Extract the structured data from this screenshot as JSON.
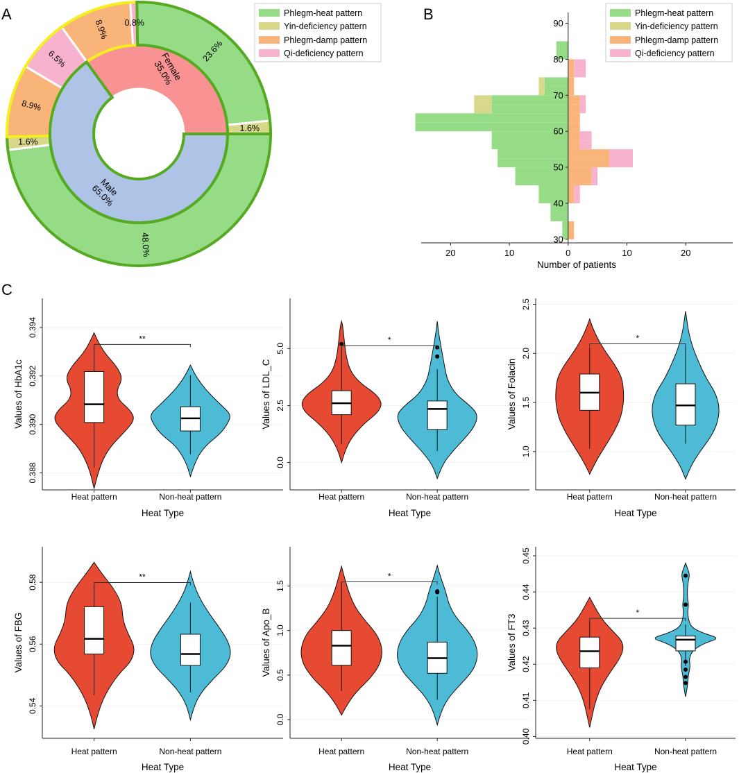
{
  "panel_labels": {
    "a": "A",
    "b": "B",
    "c": "C"
  },
  "colors": {
    "phlegm_heat": "#96dc87",
    "yin_def": "#d8d88a",
    "phlegm_damp": "#f9b47a",
    "qi_def": "#f7b2d0",
    "male": "#aec4e6",
    "female": "#f99292",
    "heat_border": "#55aa22",
    "nonheat_border": "#f5ef1e",
    "violin_heat": "#e64a33",
    "violin_nonheat": "#4dbbd5"
  },
  "chart_data": [
    {
      "id": "A",
      "type": "pie",
      "subtype": "donut",
      "legend": [
        "Phlegm-heat pattern",
        "Yin-deficiency pattern",
        "Phlegm-damp pattern",
        "Qi-deficiency pattern"
      ],
      "inner": [
        {
          "label": "Male",
          "pct": "65.0%",
          "value": 65.0
        },
        {
          "label": "Female",
          "pct": "35.0%",
          "value": 35.0
        }
      ],
      "outer": [
        {
          "category": "Phlegm-heat pattern",
          "label": "48.0%",
          "value": 48.0
        },
        {
          "category": "Yin-deficiency pattern",
          "label": "1.6%",
          "value": 1.6
        },
        {
          "category": "Phlegm-damp pattern",
          "label": "8.9%",
          "value": 8.9
        },
        {
          "category": "Qi-deficiency pattern",
          "label": "6.5%",
          "value": 6.5
        },
        {
          "category": "Phlegm-damp pattern",
          "label": "8.9%",
          "value": 8.9
        },
        {
          "category": "Qi-deficiency pattern",
          "label": "0.8%",
          "value": 0.8
        },
        {
          "category": "Phlegm-heat pattern",
          "label": "23.6%",
          "value": 23.6
        },
        {
          "category": "Yin-deficiency pattern",
          "label": "1.6%",
          "value": 1.6
        }
      ]
    },
    {
      "id": "B",
      "type": "bar",
      "subtype": "population-pyramid (stacked)",
      "xlabel": "Number of patients",
      "x_ticks": [
        "20",
        "10",
        "0",
        "10",
        "20"
      ],
      "xlim": [
        -25,
        28
      ],
      "ylim": [
        29,
        93
      ],
      "y_ticks": [
        "30",
        "40",
        "50",
        "60",
        "70",
        "80",
        "90"
      ],
      "bin_width": 2.5,
      "legend": [
        "Phlegm-heat pattern",
        "Yin-deficiency pattern",
        "Phlegm-damp pattern",
        "Qi-deficiency pattern"
      ],
      "left_bins": [
        {
          "age": 30,
          "heat": 1,
          "yin": 0
        },
        {
          "age": 32.5,
          "heat": 1,
          "yin": 0
        },
        {
          "age": 35,
          "heat": 3,
          "yin": 0
        },
        {
          "age": 37.5,
          "heat": 3,
          "yin": 0
        },
        {
          "age": 40,
          "heat": 5,
          "yin": 0
        },
        {
          "age": 42.5,
          "heat": 5,
          "yin": 0
        },
        {
          "age": 45,
          "heat": 9,
          "yin": 0
        },
        {
          "age": 47.5,
          "heat": 9,
          "yin": 0
        },
        {
          "age": 50,
          "heat": 12,
          "yin": 0
        },
        {
          "age": 52.5,
          "heat": 12,
          "yin": 0
        },
        {
          "age": 55,
          "heat": 13,
          "yin": 0
        },
        {
          "age": 57.5,
          "heat": 13,
          "yin": 0
        },
        {
          "age": 60,
          "heat": 26,
          "yin": 0
        },
        {
          "age": 62.5,
          "heat": 26,
          "yin": 0
        },
        {
          "age": 65,
          "heat": 13,
          "yin": 3
        },
        {
          "age": 67.5,
          "heat": 13,
          "yin": 3
        },
        {
          "age": 70,
          "heat": 4,
          "yin": 1
        },
        {
          "age": 72.5,
          "heat": 4,
          "yin": 1
        },
        {
          "age": 80,
          "heat": 2,
          "yin": 0
        },
        {
          "age": 82.5,
          "heat": 2,
          "yin": 0
        }
      ],
      "right_bins": [
        {
          "age": 30,
          "damp": 1,
          "qi": 0
        },
        {
          "age": 32.5,
          "damp": 1,
          "qi": 0
        },
        {
          "age": 40,
          "damp": 1,
          "qi": 1
        },
        {
          "age": 42.5,
          "damp": 1,
          "qi": 1
        },
        {
          "age": 45,
          "damp": 4,
          "qi": 1
        },
        {
          "age": 47.5,
          "damp": 4,
          "qi": 1
        },
        {
          "age": 50,
          "damp": 7,
          "qi": 4
        },
        {
          "age": 52.5,
          "damp": 7,
          "qi": 4
        },
        {
          "age": 55,
          "damp": 2,
          "qi": 2
        },
        {
          "age": 57.5,
          "damp": 2,
          "qi": 2
        },
        {
          "age": 60,
          "damp": 2,
          "qi": 0
        },
        {
          "age": 62.5,
          "damp": 2,
          "qi": 0
        },
        {
          "age": 65,
          "damp": 2,
          "qi": 1
        },
        {
          "age": 67.5,
          "damp": 2,
          "qi": 1
        },
        {
          "age": 70,
          "damp": 1,
          "qi": 0
        },
        {
          "age": 72.5,
          "damp": 1,
          "qi": 0
        },
        {
          "age": 75,
          "damp": 1,
          "qi": 2
        },
        {
          "age": 77.5,
          "damp": 1,
          "qi": 2
        }
      ]
    },
    {
      "id": "C1",
      "type": "violin",
      "ylabel": "Values of HbA1c",
      "xlabel": "Heat Type",
      "categories": [
        "Heat pattern",
        "Non-heat pattern"
      ],
      "ylim": [
        0.3873,
        0.3952
      ],
      "y_ticks": [
        0.388,
        0.39,
        0.392,
        0.394
      ],
      "y_tick_labels": [
        "0.388",
        "0.390",
        "0.392",
        "0.394"
      ],
      "significance": "**",
      "groups": [
        {
          "q1": 0.39008,
          "median": 0.39083,
          "q3": 0.39218,
          "whisker_low": 0.38822,
          "whisker_high": 0.39327,
          "density_y": [
            0.38735,
            0.3882,
            0.389,
            0.3897,
            0.3902,
            0.3906,
            0.391,
            0.3914,
            0.3919,
            0.3924,
            0.3929,
            0.3934,
            0.39378
          ],
          "density_w": [
            0.0,
            0.12,
            0.35,
            0.75,
            1.0,
            0.88,
            0.6,
            0.55,
            0.7,
            0.55,
            0.28,
            0.1,
            0.0
          ],
          "outliers": []
        },
        {
          "q1": 0.38973,
          "median": 0.39025,
          "q3": 0.39073,
          "whisker_low": 0.38878,
          "whisker_high": 0.39203,
          "density_y": [
            0.38785,
            0.3885,
            0.3891,
            0.3896,
            0.39,
            0.3904,
            0.3908,
            0.3913,
            0.3917,
            0.3921,
            0.39245
          ],
          "density_w": [
            0.0,
            0.12,
            0.35,
            0.72,
            0.9,
            1.0,
            0.75,
            0.45,
            0.25,
            0.1,
            0.0
          ],
          "outliers": []
        }
      ]
    },
    {
      "id": "C2",
      "type": "violin",
      "ylabel": "Values of LDL_C",
      "xlabel": "Heat Type",
      "categories": [
        "Heat pattern",
        "Non-heat pattern"
      ],
      "ylim": [
        -1.2,
        7.2
      ],
      "y_ticks": [
        0,
        2.5,
        5
      ],
      "y_tick_labels": [
        "0.0",
        "2.5",
        "5.0"
      ],
      "significance": "*",
      "groups": [
        {
          "q1": 2.1,
          "median": 2.6,
          "q3": 3.15,
          "whisker_low": 0.8,
          "whisker_high": 5.1,
          "density_y": [
            0.0,
            0.5,
            1.1,
            1.7,
            2.2,
            2.6,
            3.0,
            3.5,
            4.0,
            4.6,
            5.3,
            6.0,
            6.2
          ],
          "density_w": [
            0.0,
            0.08,
            0.25,
            0.55,
            0.9,
            1.0,
            0.85,
            0.45,
            0.22,
            0.12,
            0.07,
            0.03,
            0.0
          ],
          "outliers": [
            5.2
          ]
        },
        {
          "q1": 1.45,
          "median": 2.35,
          "q3": 2.7,
          "whisker_low": 0.5,
          "whisker_high": 4.1,
          "density_y": [
            -0.7,
            -0.1,
            0.5,
            1.1,
            1.6,
            2.1,
            2.5,
            3.0,
            3.6,
            4.2,
            4.8,
            5.6,
            6.2
          ],
          "density_w": [
            0.0,
            0.12,
            0.38,
            0.7,
            0.92,
            1.0,
            0.8,
            0.45,
            0.25,
            0.18,
            0.12,
            0.04,
            0.0
          ],
          "outliers": [
            4.65,
            5.05
          ]
        }
      ]
    },
    {
      "id": "C3",
      "type": "violin",
      "ylabel": "Values of Folacin",
      "xlabel": "Heat Type",
      "categories": [
        "Heat pattern",
        "Non-heat pattern"
      ],
      "ylim": [
        0.61,
        2.56
      ],
      "y_ticks": [
        1.0,
        1.5,
        2.0,
        2.5
      ],
      "y_tick_labels": [
        "1.0",
        "1.5",
        "2.0",
        "2.5"
      ],
      "significance": "*",
      "groups": [
        {
          "q1": 1.42,
          "median": 1.6,
          "q3": 1.79,
          "whisker_low": 1.03,
          "whisker_high": 2.06,
          "density_y": [
            0.77,
            0.9,
            1.05,
            1.2,
            1.35,
            1.5,
            1.62,
            1.75,
            1.88,
            2.0,
            2.12,
            2.25,
            2.35
          ],
          "density_w": [
            0.0,
            0.18,
            0.45,
            0.72,
            0.92,
            1.0,
            1.0,
            0.95,
            0.75,
            0.5,
            0.28,
            0.1,
            0.0
          ],
          "outliers": []
        },
        {
          "q1": 1.27,
          "median": 1.47,
          "q3": 1.69,
          "whisker_low": 1.08,
          "whisker_high": 2.09,
          "density_y": [
            0.72,
            0.85,
            1.0,
            1.15,
            1.3,
            1.45,
            1.6,
            1.75,
            1.9,
            2.05,
            2.2,
            2.33,
            2.43
          ],
          "density_w": [
            0.0,
            0.15,
            0.42,
            0.75,
            0.95,
            1.0,
            0.88,
            0.6,
            0.4,
            0.22,
            0.1,
            0.04,
            0.0
          ],
          "outliers": []
        }
      ]
    },
    {
      "id": "C4",
      "type": "violin",
      "ylabel": "Values of FBG",
      "xlabel": "Heat Type",
      "categories": [
        "Heat pattern",
        "Non-heat pattern"
      ],
      "ylim": [
        0.5295,
        0.5915
      ],
      "y_ticks": [
        0.54,
        0.56,
        0.58
      ],
      "y_tick_labels": [
        "0.54",
        "0.56",
        "0.58"
      ],
      "significance": "**",
      "groups": [
        {
          "q1": 0.5568,
          "median": 0.5617,
          "q3": 0.5721,
          "whisker_low": 0.5435,
          "whisker_high": 0.5797,
          "density_y": [
            0.5325,
            0.538,
            0.544,
            0.55,
            0.5545,
            0.559,
            0.5635,
            0.568,
            0.573,
            0.578,
            0.583,
            0.5865
          ],
          "density_w": [
            0.0,
            0.1,
            0.28,
            0.58,
            0.92,
            1.0,
            0.82,
            0.7,
            0.68,
            0.48,
            0.18,
            0.0
          ],
          "outliers": []
        },
        {
          "q1": 0.5531,
          "median": 0.5568,
          "q3": 0.5632,
          "whisker_low": 0.5444,
          "whisker_high": 0.5734,
          "density_y": [
            0.5355,
            0.5405,
            0.545,
            0.549,
            0.553,
            0.557,
            0.561,
            0.5655,
            0.57,
            0.575,
            0.5795,
            0.5835
          ],
          "density_w": [
            0.0,
            0.1,
            0.3,
            0.58,
            0.88,
            1.0,
            0.92,
            0.7,
            0.45,
            0.22,
            0.08,
            0.0
          ],
          "outliers": []
        }
      ]
    },
    {
      "id": "C5",
      "type": "violin",
      "ylabel": "Values of Apo_B",
      "xlabel": "Heat Type",
      "categories": [
        "Heat pattern",
        "Non-heat pattern"
      ],
      "ylim": [
        -0.21,
        1.94
      ],
      "y_ticks": [
        0.0,
        0.5,
        1.0,
        1.5
      ],
      "y_tick_labels": [
        "0.0",
        "0.5",
        "1.0",
        "1.5"
      ],
      "significance": "*",
      "groups": [
        {
          "q1": 0.61,
          "median": 0.83,
          "q3": 1.0,
          "whisker_low": 0.32,
          "whisker_high": 1.54,
          "density_y": [
            0.05,
            0.18,
            0.32,
            0.46,
            0.6,
            0.72,
            0.84,
            0.97,
            1.1,
            1.25,
            1.4,
            1.55,
            1.72
          ],
          "density_w": [
            0.0,
            0.15,
            0.38,
            0.7,
            0.92,
            1.0,
            0.98,
            0.85,
            0.6,
            0.35,
            0.2,
            0.1,
            0.0
          ],
          "outliers": []
        },
        {
          "q1": 0.52,
          "median": 0.69,
          "q3": 0.87,
          "whisker_low": 0.22,
          "whisker_high": 1.38,
          "density_y": [
            -0.06,
            0.1,
            0.25,
            0.4,
            0.55,
            0.7,
            0.85,
            1.0,
            1.15,
            1.3,
            1.45,
            1.6,
            1.73
          ],
          "density_w": [
            0.0,
            0.1,
            0.28,
            0.58,
            0.88,
            1.0,
            0.95,
            0.75,
            0.45,
            0.28,
            0.2,
            0.08,
            0.0
          ],
          "outliers": [
            1.43,
            1.44
          ]
        }
      ]
    },
    {
      "id": "C6",
      "type": "violin",
      "ylabel": "Values of FT3",
      "xlabel": "Heat Type",
      "categories": [
        "Heat pattern",
        "Non-heat pattern"
      ],
      "ylim": [
        0.3995,
        0.4525
      ],
      "y_ticks": [
        0.4,
        0.41,
        0.42,
        0.43,
        0.44,
        0.45
      ],
      "y_tick_labels": [
        "0.40",
        "0.41",
        "0.42",
        "0.43",
        "0.44",
        "0.45"
      ],
      "significance": "*",
      "groups": [
        {
          "q1": 0.419,
          "median": 0.4236,
          "q3": 0.4275,
          "whisker_low": 0.4075,
          "whisker_high": 0.4325,
          "density_y": [
            0.4025,
            0.406,
            0.41,
            0.414,
            0.418,
            0.421,
            0.424,
            0.4265,
            0.429,
            0.432,
            0.435,
            0.4385
          ],
          "density_w": [
            0.0,
            0.08,
            0.18,
            0.35,
            0.62,
            0.85,
            1.0,
            0.95,
            0.7,
            0.4,
            0.2,
            0.0
          ],
          "outliers": []
        },
        {
          "q1": 0.4237,
          "median": 0.4268,
          "q3": 0.4278,
          "whisker_low": 0.4195,
          "whisker_high": 0.431,
          "density_y": [
            0.411,
            0.414,
            0.417,
            0.4195,
            0.4215,
            0.424,
            0.426,
            0.4272,
            0.4285,
            0.43,
            0.432,
            0.4345,
            0.4365,
            0.438,
            0.4405,
            0.443,
            0.4448,
            0.4465,
            0.448
          ],
          "density_w": [
            0.0,
            0.06,
            0.08,
            0.14,
            0.1,
            0.22,
            0.6,
            1.0,
            0.55,
            0.2,
            0.09,
            0.06,
            0.09,
            0.06,
            0.05,
            0.08,
            0.12,
            0.06,
            0.0
          ],
          "outliers": [
            0.4148,
            0.4165,
            0.4185,
            0.4207,
            0.4365,
            0.4445
          ]
        }
      ]
    }
  ]
}
